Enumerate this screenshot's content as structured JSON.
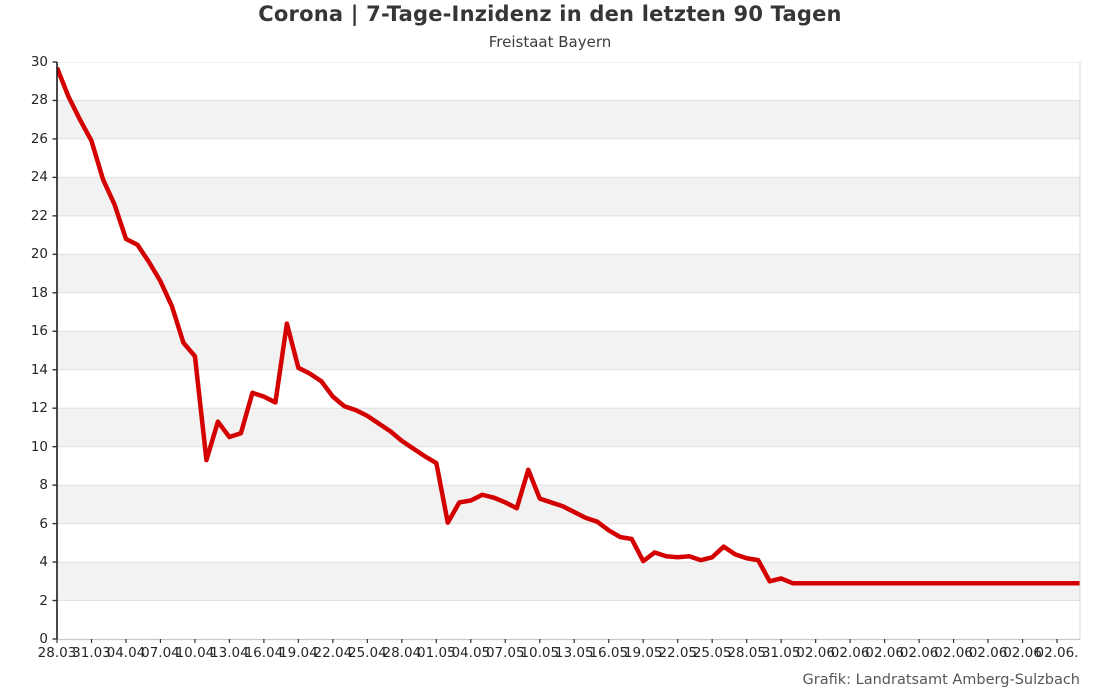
{
  "header": {
    "title": "Corona | 7-Tage-Inzidenz in den letzten 90 Tagen",
    "subtitle": "Freistaat Bayern"
  },
  "footer": {
    "credit": "Grafik: Landratsamt Amberg-Sulzbach"
  },
  "colors": {
    "line": "#d40000",
    "band_gray": "#f2f2f2",
    "band_white": "#ffffff",
    "gridline": "#e0e0e0",
    "y_spine": "#1a1a1a",
    "x_axis_line": "#c9c9c9",
    "right_spine": "#d6d6d6",
    "tick_mark": "#333333",
    "tick_text": "#262626",
    "title_text": "#363636",
    "footer_text": "#565656",
    "background": "#ffffff"
  },
  "chart_data": {
    "type": "line",
    "title": "Corona | 7-Tage-Inzidenz in den letzten 90 Tagen",
    "subtitle": "Freistaat Bayern",
    "ylabel": "",
    "xlabel": "",
    "ylim": [
      0,
      30
    ],
    "y_ticks": [
      0,
      2,
      4,
      6,
      8,
      10,
      12,
      14,
      16,
      18,
      20,
      22,
      24,
      26,
      28,
      30
    ],
    "n_points": 90,
    "x_tick_every_n_points": 3,
    "x_tick_labels": [
      "28.03",
      "31.03",
      "04.04",
      "07.04",
      "10.04",
      "13.04",
      "16.04",
      "19.04",
      "22.04",
      "25.04",
      "28.04",
      "01.05",
      "04.05",
      "07.05",
      "10.05",
      "13.05",
      "16.05",
      "19.05",
      "22.05",
      "25.05",
      "28.05",
      "31.05",
      "02.06",
      "02.06",
      "02.06",
      "02.06",
      "02.06",
      "02.06",
      "02.06",
      "02.06."
    ],
    "banded_background": true,
    "legend_position": "none",
    "series": [
      {
        "name": "7-Tage-Inzidenz",
        "color": "#d40000",
        "values": [
          29.7,
          28.2,
          27.0,
          25.9,
          23.9,
          22.6,
          20.8,
          20.5,
          19.6,
          18.6,
          17.3,
          15.4,
          14.7,
          9.3,
          11.3,
          10.5,
          10.7,
          12.8,
          12.6,
          12.3,
          16.4,
          14.1,
          13.8,
          13.4,
          12.6,
          12.1,
          11.9,
          11.6,
          11.2,
          10.8,
          10.3,
          9.9,
          9.5,
          9.15,
          6.05,
          7.1,
          7.2,
          7.5,
          7.35,
          7.1,
          6.8,
          8.8,
          7.3,
          7.1,
          6.9,
          6.6,
          6.3,
          6.1,
          5.65,
          5.3,
          5.2,
          4.05,
          4.5,
          4.3,
          4.25,
          4.3,
          4.1,
          4.25,
          4.8,
          4.4,
          4.2,
          4.1,
          3.0,
          3.15,
          2.9,
          2.9,
          2.9,
          2.9,
          2.9,
          2.9,
          2.9,
          2.9,
          2.9,
          2.9,
          2.9,
          2.9,
          2.9,
          2.9,
          2.9,
          2.9,
          2.9,
          2.9,
          2.9,
          2.9,
          2.9,
          2.9,
          2.9,
          2.9,
          2.9,
          2.9
        ]
      }
    ]
  }
}
